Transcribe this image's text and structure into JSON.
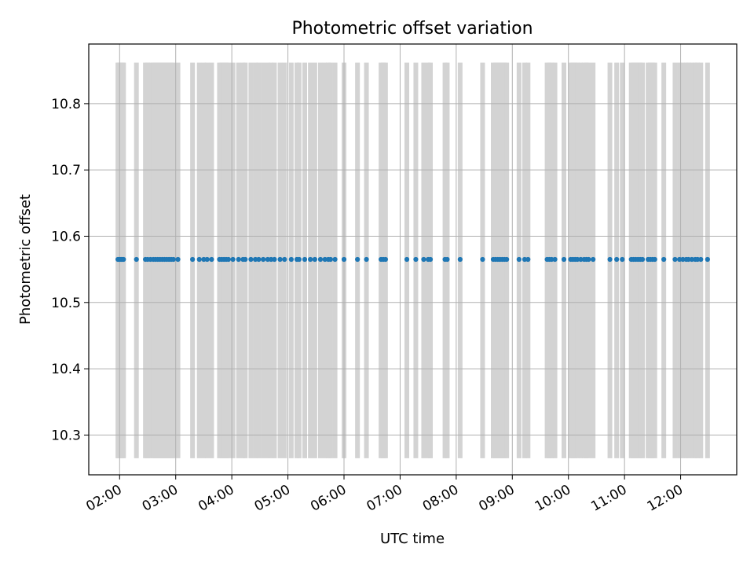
{
  "chart_data": {
    "type": "scatter",
    "title": "Photometric offset variation",
    "xlabel": "UTC time",
    "ylabel": "Photometric offset",
    "x_unit": "hours (UTC)",
    "xlim": [
      1.45,
      13.0
    ],
    "ylim": [
      10.24,
      10.89
    ],
    "x_tick_labels": [
      "02:00",
      "03:00",
      "04:00",
      "05:00",
      "06:00",
      "07:00",
      "08:00",
      "09:00",
      "10:00",
      "11:00",
      "12:00"
    ],
    "x_tick_values": [
      2,
      3,
      4,
      5,
      6,
      7,
      8,
      9,
      10,
      11,
      12
    ],
    "y_tick_labels": [
      "10.3",
      "10.4",
      "10.5",
      "10.6",
      "10.7",
      "10.8"
    ],
    "y_tick_values": [
      10.3,
      10.4,
      10.5,
      10.6,
      10.7,
      10.8
    ],
    "grid": true,
    "point_color": "#1f77b4",
    "band_color": "#d3d3d3",
    "error_band": {
      "low": 10.265,
      "high": 10.862
    },
    "series": [
      {
        "x": [
          1.97,
          1.99,
          2.01,
          2.03,
          2.05,
          2.07,
          2.3,
          2.46,
          2.5,
          2.55,
          2.6,
          2.64,
          2.68,
          2.72,
          2.76,
          2.8,
          2.84,
          2.88,
          2.92,
          2.96,
          3.04,
          3.3,
          3.42,
          3.5,
          3.56,
          3.64,
          3.78,
          3.82,
          3.86,
          3.9,
          3.94,
          4.02,
          4.12,
          4.2,
          4.24,
          4.34,
          4.42,
          4.48,
          4.56,
          4.64,
          4.7,
          4.76,
          4.86,
          4.94,
          5.06,
          5.16,
          5.2,
          5.3,
          5.4,
          5.48,
          5.58,
          5.66,
          5.72,
          5.76,
          5.84,
          6.0,
          6.24,
          6.4,
          6.66,
          6.7,
          6.74,
          7.12,
          7.28,
          7.42,
          7.5,
          7.54,
          7.8,
          7.84,
          8.07,
          8.47,
          8.66,
          8.7,
          8.74,
          8.78,
          8.82,
          8.86,
          8.9,
          9.12,
          9.22,
          9.28,
          9.62,
          9.66,
          9.7,
          9.76,
          9.92,
          10.04,
          10.08,
          10.12,
          10.16,
          10.22,
          10.28,
          10.32,
          10.36,
          10.44,
          10.74,
          10.86,
          10.96,
          11.12,
          11.16,
          11.2,
          11.24,
          11.28,
          11.32,
          11.42,
          11.46,
          11.5,
          11.54,
          11.7,
          11.9,
          11.98,
          12.04,
          12.1,
          12.14,
          12.2,
          12.26,
          12.3,
          12.36,
          12.48
        ],
        "y": [
          10.565,
          10.565,
          10.565,
          10.565,
          10.565,
          10.565,
          10.565,
          10.565,
          10.565,
          10.565,
          10.565,
          10.565,
          10.565,
          10.565,
          10.565,
          10.565,
          10.565,
          10.565,
          10.565,
          10.565,
          10.565,
          10.565,
          10.565,
          10.565,
          10.565,
          10.565,
          10.565,
          10.565,
          10.565,
          10.565,
          10.565,
          10.565,
          10.565,
          10.565,
          10.565,
          10.565,
          10.565,
          10.565,
          10.565,
          10.565,
          10.565,
          10.565,
          10.565,
          10.565,
          10.565,
          10.565,
          10.565,
          10.565,
          10.565,
          10.565,
          10.565,
          10.565,
          10.565,
          10.565,
          10.565,
          10.565,
          10.565,
          10.565,
          10.565,
          10.565,
          10.565,
          10.565,
          10.565,
          10.565,
          10.565,
          10.565,
          10.565,
          10.565,
          10.565,
          10.565,
          10.565,
          10.565,
          10.565,
          10.565,
          10.565,
          10.565,
          10.565,
          10.565,
          10.565,
          10.565,
          10.565,
          10.565,
          10.565,
          10.565,
          10.565,
          10.565,
          10.565,
          10.565,
          10.565,
          10.565,
          10.565,
          10.565,
          10.565,
          10.565,
          10.565,
          10.565,
          10.565,
          10.565,
          10.565,
          10.565,
          10.565,
          10.565,
          10.565,
          10.565,
          10.565,
          10.565,
          10.565,
          10.565,
          10.565,
          10.565,
          10.565,
          10.565,
          10.565,
          10.565,
          10.565,
          10.565,
          10.565,
          10.565
        ]
      }
    ]
  }
}
